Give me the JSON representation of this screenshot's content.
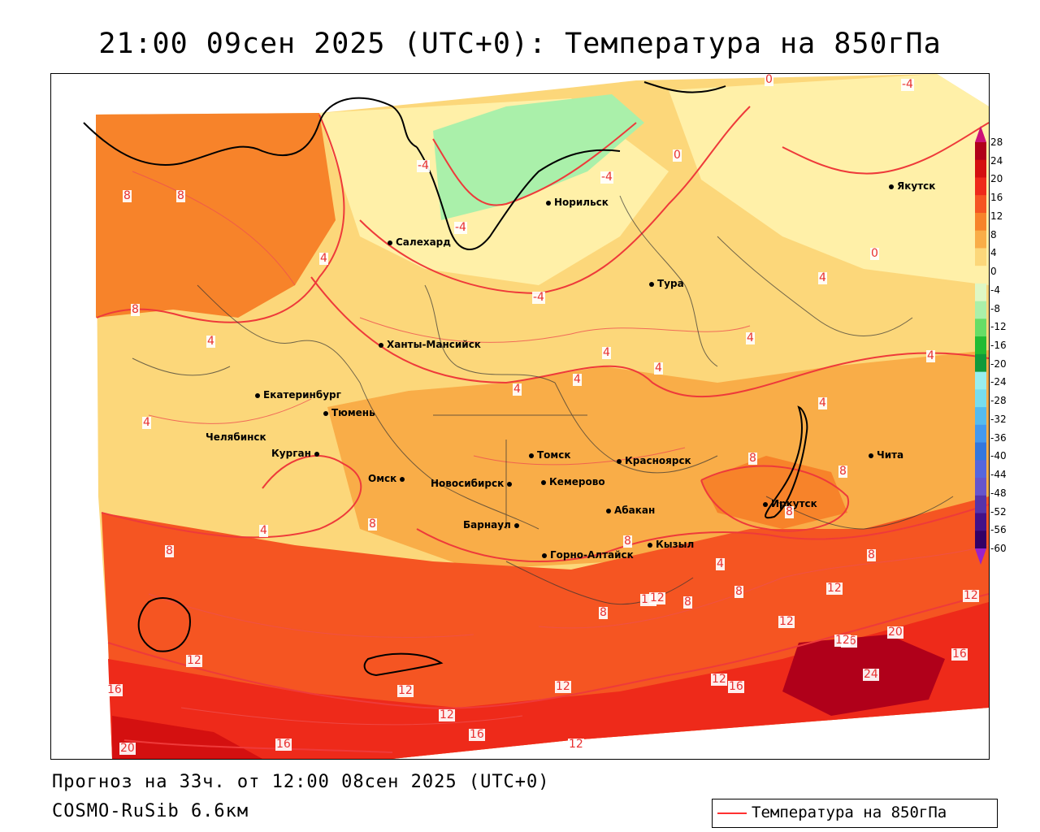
{
  "header": {
    "title": "21:00 09сен 2025 (UTC+0): Температура на 850гПа"
  },
  "footer": {
    "forecast": "Прогноз на 33ч. от 12:00 08сен 2025 (UTC+0)",
    "model": "COSMO-RuSib 6.6км"
  },
  "legend": {
    "label": "Температура на 850гПа",
    "line_color": "#ff3030"
  },
  "colorbar": {
    "ticks": [
      "28",
      "24",
      "20",
      "16",
      "12",
      "8",
      "4",
      "0",
      "-4",
      "-8",
      "-12",
      "-16",
      "-20",
      "-24",
      "-28",
      "-32",
      "-36",
      "-40",
      "-44",
      "-48",
      "-52",
      "-56",
      "-60"
    ],
    "colors": [
      "#b0001a",
      "#d41010",
      "#ee2a1a",
      "#f55522",
      "#f7832a",
      "#f9ad48",
      "#fcd77a",
      "#fff0a8",
      "#dff7c4",
      "#aaf0aa",
      "#66dd66",
      "#22bb33",
      "#11993a",
      "#99eeee",
      "#77ddee",
      "#55bbee",
      "#4499ee",
      "#3377dd",
      "#5566dd",
      "#6655cc",
      "#5533aa",
      "#441188",
      "#330066"
    ],
    "top_color": "#cc1177",
    "bottom_color": "#9922cc"
  },
  "cities": [
    {
      "name": "Якутск"
    },
    {
      "name": "Норильск"
    },
    {
      "name": "Салехард"
    },
    {
      "name": "Тура"
    },
    {
      "name": "Ханты-Мансийск"
    },
    {
      "name": "Екатеринбург"
    },
    {
      "name": "Тюмень"
    },
    {
      "name": "Челябинск"
    },
    {
      "name": "Курган"
    },
    {
      "name": "Омск"
    },
    {
      "name": "Томск"
    },
    {
      "name": "Красноярск"
    },
    {
      "name": "Новосибирск"
    },
    {
      "name": "Кемерово"
    },
    {
      "name": "Абакан"
    },
    {
      "name": "Барнаул"
    },
    {
      "name": "Горно-Алтайск"
    },
    {
      "name": "Кызыл"
    },
    {
      "name": "Иркутск"
    },
    {
      "name": "Чита"
    }
  ],
  "isotherm_labels": [
    "-4",
    "-4",
    "-4",
    "-4",
    "0",
    "0",
    "0",
    "-4",
    "8",
    "8",
    "4",
    "8",
    "4",
    "4",
    "4",
    "4",
    "4",
    "4",
    "4",
    "4",
    "4",
    "4",
    "4",
    "8",
    "8",
    "8",
    "8",
    "8",
    "8",
    "8",
    "8",
    "8",
    "4",
    "8",
    "12",
    "12",
    "12",
    "12",
    "12",
    "12",
    "12",
    "16",
    "16",
    "16",
    "16",
    "20",
    "20",
    "24",
    "12",
    "16",
    "12",
    "16",
    "12",
    "12",
    "12"
  ]
}
